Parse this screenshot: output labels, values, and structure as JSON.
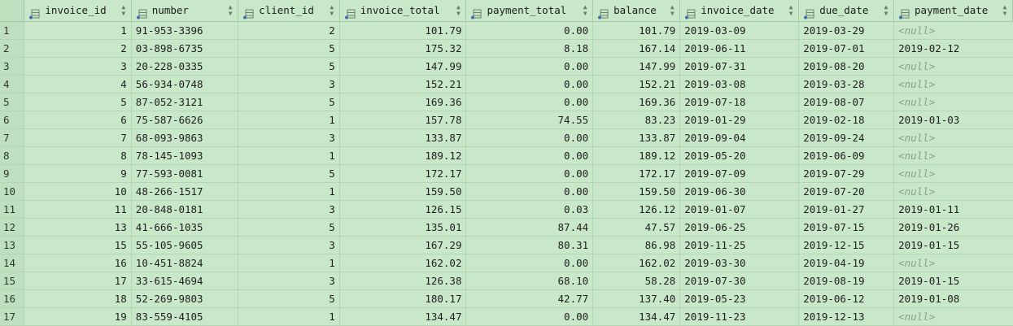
{
  "columns": [
    {
      "label": "invoice_id"
    },
    {
      "label": "number"
    },
    {
      "label": "client_id"
    },
    {
      "label": "invoice_total"
    },
    {
      "label": "payment_total"
    },
    {
      "label": "balance"
    },
    {
      "label": "invoice_date"
    },
    {
      "label": "due_date"
    },
    {
      "label": "payment_date"
    }
  ],
  "null_text": "<null>",
  "rows": [
    {
      "n": "1",
      "c": [
        "1",
        "91-953-3396",
        "2",
        "101.79",
        "0.00",
        "101.79",
        "2019-03-09",
        "2019-03-29",
        null
      ]
    },
    {
      "n": "2",
      "c": [
        "2",
        "03-898-6735",
        "5",
        "175.32",
        "8.18",
        "167.14",
        "2019-06-11",
        "2019-07-01",
        "2019-02-12"
      ]
    },
    {
      "n": "3",
      "c": [
        "3",
        "20-228-0335",
        "5",
        "147.99",
        "0.00",
        "147.99",
        "2019-07-31",
        "2019-08-20",
        null
      ]
    },
    {
      "n": "4",
      "c": [
        "4",
        "56-934-0748",
        "3",
        "152.21",
        "0.00",
        "152.21",
        "2019-03-08",
        "2019-03-28",
        null
      ]
    },
    {
      "n": "5",
      "c": [
        "5",
        "87-052-3121",
        "5",
        "169.36",
        "0.00",
        "169.36",
        "2019-07-18",
        "2019-08-07",
        null
      ]
    },
    {
      "n": "6",
      "c": [
        "6",
        "75-587-6626",
        "1",
        "157.78",
        "74.55",
        "83.23",
        "2019-01-29",
        "2019-02-18",
        "2019-01-03"
      ]
    },
    {
      "n": "7",
      "c": [
        "7",
        "68-093-9863",
        "3",
        "133.87",
        "0.00",
        "133.87",
        "2019-09-04",
        "2019-09-24",
        null
      ]
    },
    {
      "n": "8",
      "c": [
        "8",
        "78-145-1093",
        "1",
        "189.12",
        "0.00",
        "189.12",
        "2019-05-20",
        "2019-06-09",
        null
      ]
    },
    {
      "n": "9",
      "c": [
        "9",
        "77-593-0081",
        "5",
        "172.17",
        "0.00",
        "172.17",
        "2019-07-09",
        "2019-07-29",
        null
      ]
    },
    {
      "n": "10",
      "c": [
        "10",
        "48-266-1517",
        "1",
        "159.50",
        "0.00",
        "159.50",
        "2019-06-30",
        "2019-07-20",
        null
      ]
    },
    {
      "n": "11",
      "c": [
        "11",
        "20-848-0181",
        "3",
        "126.15",
        "0.03",
        "126.12",
        "2019-01-07",
        "2019-01-27",
        "2019-01-11"
      ]
    },
    {
      "n": "12",
      "c": [
        "13",
        "41-666-1035",
        "5",
        "135.01",
        "87.44",
        "47.57",
        "2019-06-25",
        "2019-07-15",
        "2019-01-26"
      ]
    },
    {
      "n": "13",
      "c": [
        "15",
        "55-105-9605",
        "3",
        "167.29",
        "80.31",
        "86.98",
        "2019-11-25",
        "2019-12-15",
        "2019-01-15"
      ]
    },
    {
      "n": "14",
      "c": [
        "16",
        "10-451-8824",
        "1",
        "162.02",
        "0.00",
        "162.02",
        "2019-03-30",
        "2019-04-19",
        null
      ]
    },
    {
      "n": "15",
      "c": [
        "17",
        "33-615-4694",
        "3",
        "126.38",
        "68.10",
        "58.28",
        "2019-07-30",
        "2019-08-19",
        "2019-01-15"
      ]
    },
    {
      "n": "16",
      "c": [
        "18",
        "52-269-9803",
        "5",
        "180.17",
        "42.77",
        "137.40",
        "2019-05-23",
        "2019-06-12",
        "2019-01-08"
      ]
    },
    {
      "n": "17",
      "c": [
        "19",
        "83-559-4105",
        "1",
        "134.47",
        "0.00",
        "134.47",
        "2019-11-23",
        "2019-12-13",
        null
      ]
    }
  ]
}
